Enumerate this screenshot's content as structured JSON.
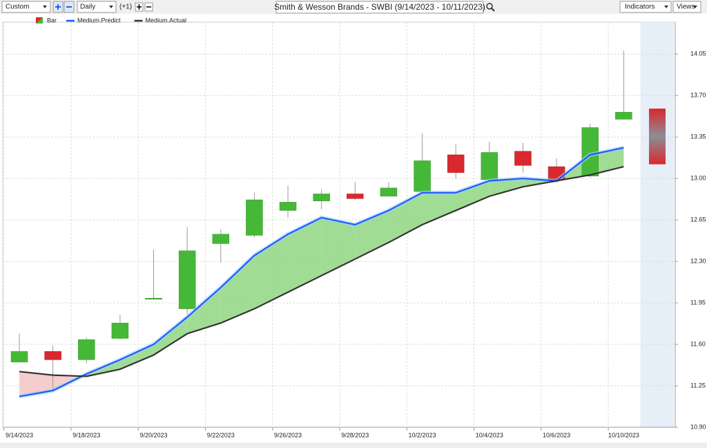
{
  "toolbar": {
    "period": "Custom",
    "interval": "Daily",
    "offset": "(+1)",
    "indicators": "Indicators",
    "views": "Views"
  },
  "chart_data": {
    "type": "candlestick",
    "title": "Smith & Wesson Brands - SWBI (9/14/2023 - 10/11/2023)",
    "categories": [
      "9/14/2023",
      null,
      "9/18/2023",
      null,
      "9/20/2023",
      null,
      "9/22/2023",
      null,
      "9/26/2023",
      null,
      "9/28/2023",
      null,
      "10/2/2023",
      null,
      "10/4/2023",
      null,
      "10/6/2023",
      null,
      "10/10/2023",
      null
    ],
    "candles": {
      "name": "Bar",
      "up_color": "#46b838",
      "down_color": "#d9282e",
      "open": [
        11.45,
        11.54,
        11.47,
        11.65,
        11.98,
        11.9,
        12.45,
        12.52,
        12.73,
        12.81,
        12.87,
        12.85,
        12.89,
        13.2,
        12.99,
        13.23,
        13.1,
        13.02,
        13.5,
        13.59
      ],
      "high": [
        11.69,
        11.59,
        11.66,
        11.85,
        12.4,
        12.59,
        12.57,
        12.88,
        12.94,
        12.91,
        12.97,
        12.97,
        13.38,
        13.29,
        13.31,
        13.3,
        13.17,
        13.46,
        14.08,
        null
      ],
      "low": [
        11.45,
        11.21,
        11.44,
        11.64,
        11.98,
        11.85,
        12.29,
        12.5,
        12.67,
        12.74,
        12.82,
        12.85,
        12.88,
        13.0,
        12.99,
        13.05,
        12.98,
        13.01,
        13.5,
        null
      ],
      "close": [
        11.54,
        11.47,
        11.64,
        11.78,
        11.99,
        12.39,
        12.53,
        12.82,
        12.8,
        12.87,
        12.83,
        12.92,
        13.15,
        13.05,
        13.22,
        13.11,
        12.99,
        13.43,
        13.56,
        13.12
      ]
    },
    "series": [
      {
        "name": "Medium.Predict",
        "color": "#1f5cf5",
        "values": [
          11.16,
          11.21,
          11.35,
          11.47,
          11.6,
          11.83,
          12.08,
          12.35,
          12.53,
          12.67,
          12.61,
          12.73,
          12.88,
          12.88,
          12.98,
          13.0,
          12.98,
          13.2,
          13.26,
          null
        ]
      },
      {
        "name": "Medium.Actual",
        "color": "#333333",
        "values": [
          11.37,
          11.34,
          11.33,
          11.39,
          11.51,
          11.69,
          11.78,
          11.9,
          12.04,
          12.18,
          12.32,
          12.46,
          12.61,
          12.73,
          12.85,
          12.93,
          12.98,
          13.03,
          13.1,
          null
        ]
      }
    ],
    "fill_above_color": "#8fd680",
    "fill_below_color": "#f4c4c4",
    "ylim": [
      10.9,
      14.32
    ],
    "yticks": [
      {
        "value": 10.9,
        "label": "10.90"
      },
      11.25,
      {
        "value": 11.6,
        "label": "11.60"
      },
      11.95,
      {
        "value": 12.3,
        "label": "12.30"
      },
      12.65,
      {
        "value": 13.0,
        "label": "13.00"
      },
      13.35,
      {
        "value": 13.7,
        "label": "13.70"
      },
      14.05
    ],
    "grid": true
  }
}
